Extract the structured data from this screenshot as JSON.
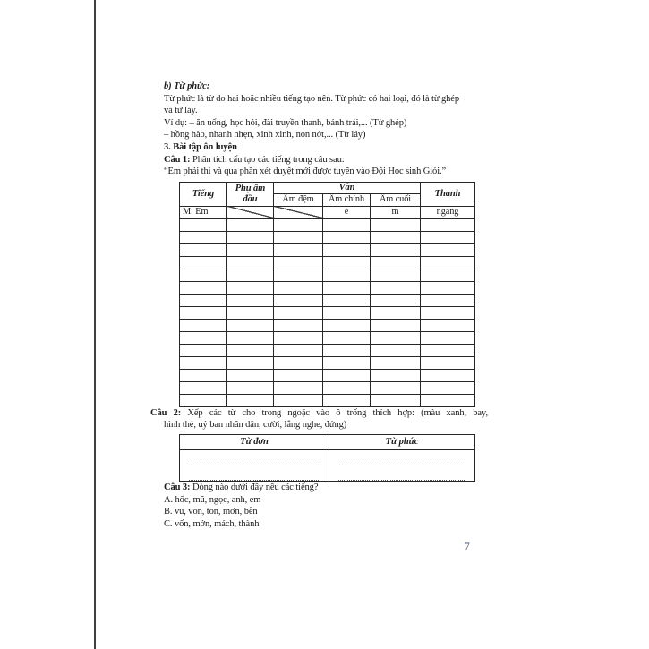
{
  "page": {
    "number": "7"
  },
  "intro": {
    "heading_b": "b) Từ phức:",
    "para_line1": "Từ phức là từ do hai hoặc nhiều tiếng tạo nên. Từ phức có hai loại, đó là từ ghép",
    "para_line2": "và từ láy.",
    "example_ghep": "Ví dụ: – ăn uống, học hỏi, đài truyền thanh, bánh trái,... (Từ ghép)",
    "example_lay": "– hồng hào, nhanh nhẹn, xinh xinh, non nớt,... (Từ láy)",
    "section3": "3. Bài tập ôn luyện"
  },
  "cau1": {
    "label": "Câu 1:",
    "text": " Phân tích cấu tạo các tiếng trong câu sau:",
    "quote": "“Em phải thi và qua phần xét duyệt mới được tuyển vào Đội Học sinh Giỏi.”",
    "table": {
      "col_tieng": "Tiếng",
      "col_phu_am_dau": "Phụ âm đầu",
      "col_van": "Vần",
      "col_am_dem": "Âm đệm",
      "col_am_chinh": "Âm chính",
      "col_am_cuoi": "Âm cuối",
      "col_thanh": "Thanh",
      "row_m": {
        "tieng": "M: Em",
        "am_chinh": "e",
        "am_cuoi": "m",
        "thanh": "ngang"
      },
      "empty_rows": 15
    }
  },
  "cau2": {
    "line1": "Câu 2: Xếp các từ cho trong ngoặc vào ô trống thích hợp: (màu xanh, bay,",
    "line2": "hình thẻ, uỷ ban nhân dân, cười, lắng nghe, đứng)",
    "table": {
      "col_tu_don": "Từ đơn",
      "col_tu_phuc": "Từ phức"
    }
  },
  "cau3": {
    "label": "Câu 3:",
    "text": " Dòng nào dưới đây nêu các tiếng?",
    "options": [
      "A. hốc, mũ, ngọc, anh, em",
      "B. vu, von, ton, mơn, bễn",
      "C. vốn, mởn, mách, thành"
    ]
  }
}
